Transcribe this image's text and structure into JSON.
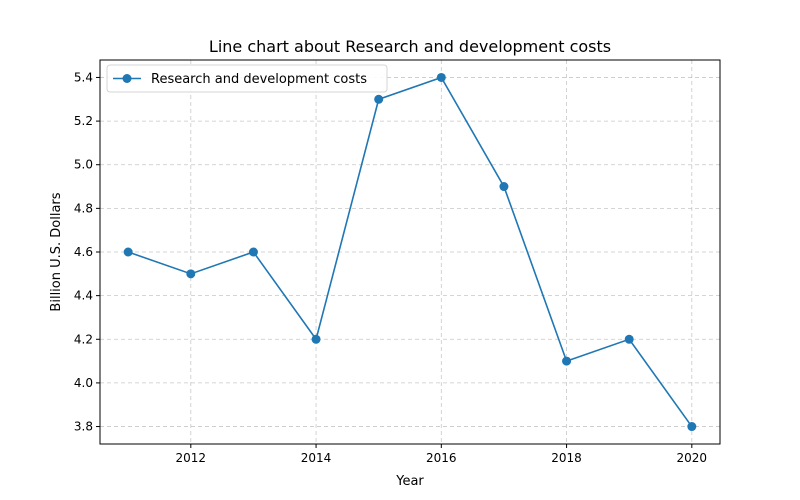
{
  "chart_data": {
    "type": "line",
    "title": "Line chart about Research and development costs",
    "xlabel": "Year",
    "ylabel": "Billion U.S. Dollars",
    "x": [
      2011,
      2012,
      2013,
      2014,
      2015,
      2016,
      2017,
      2018,
      2019,
      2020
    ],
    "series": [
      {
        "name": "Research and development costs",
        "values": [
          4.6,
          4.5,
          4.6,
          4.2,
          5.3,
          5.4,
          4.9,
          4.1,
          4.2,
          3.8
        ]
      }
    ],
    "xticks": [
      2012,
      2014,
      2016,
      2018,
      2020
    ],
    "yticks": [
      3.8,
      4.0,
      4.2,
      4.4,
      4.6,
      4.8,
      5.0,
      5.2,
      5.4
    ],
    "xlim": [
      2010.55,
      2020.45
    ],
    "ylim": [
      3.72,
      5.48
    ],
    "grid": true,
    "legend_position": "top-left",
    "colors": {
      "series": "#1f77b4",
      "grid": "#b0b0b0",
      "axis": "#000000"
    }
  }
}
